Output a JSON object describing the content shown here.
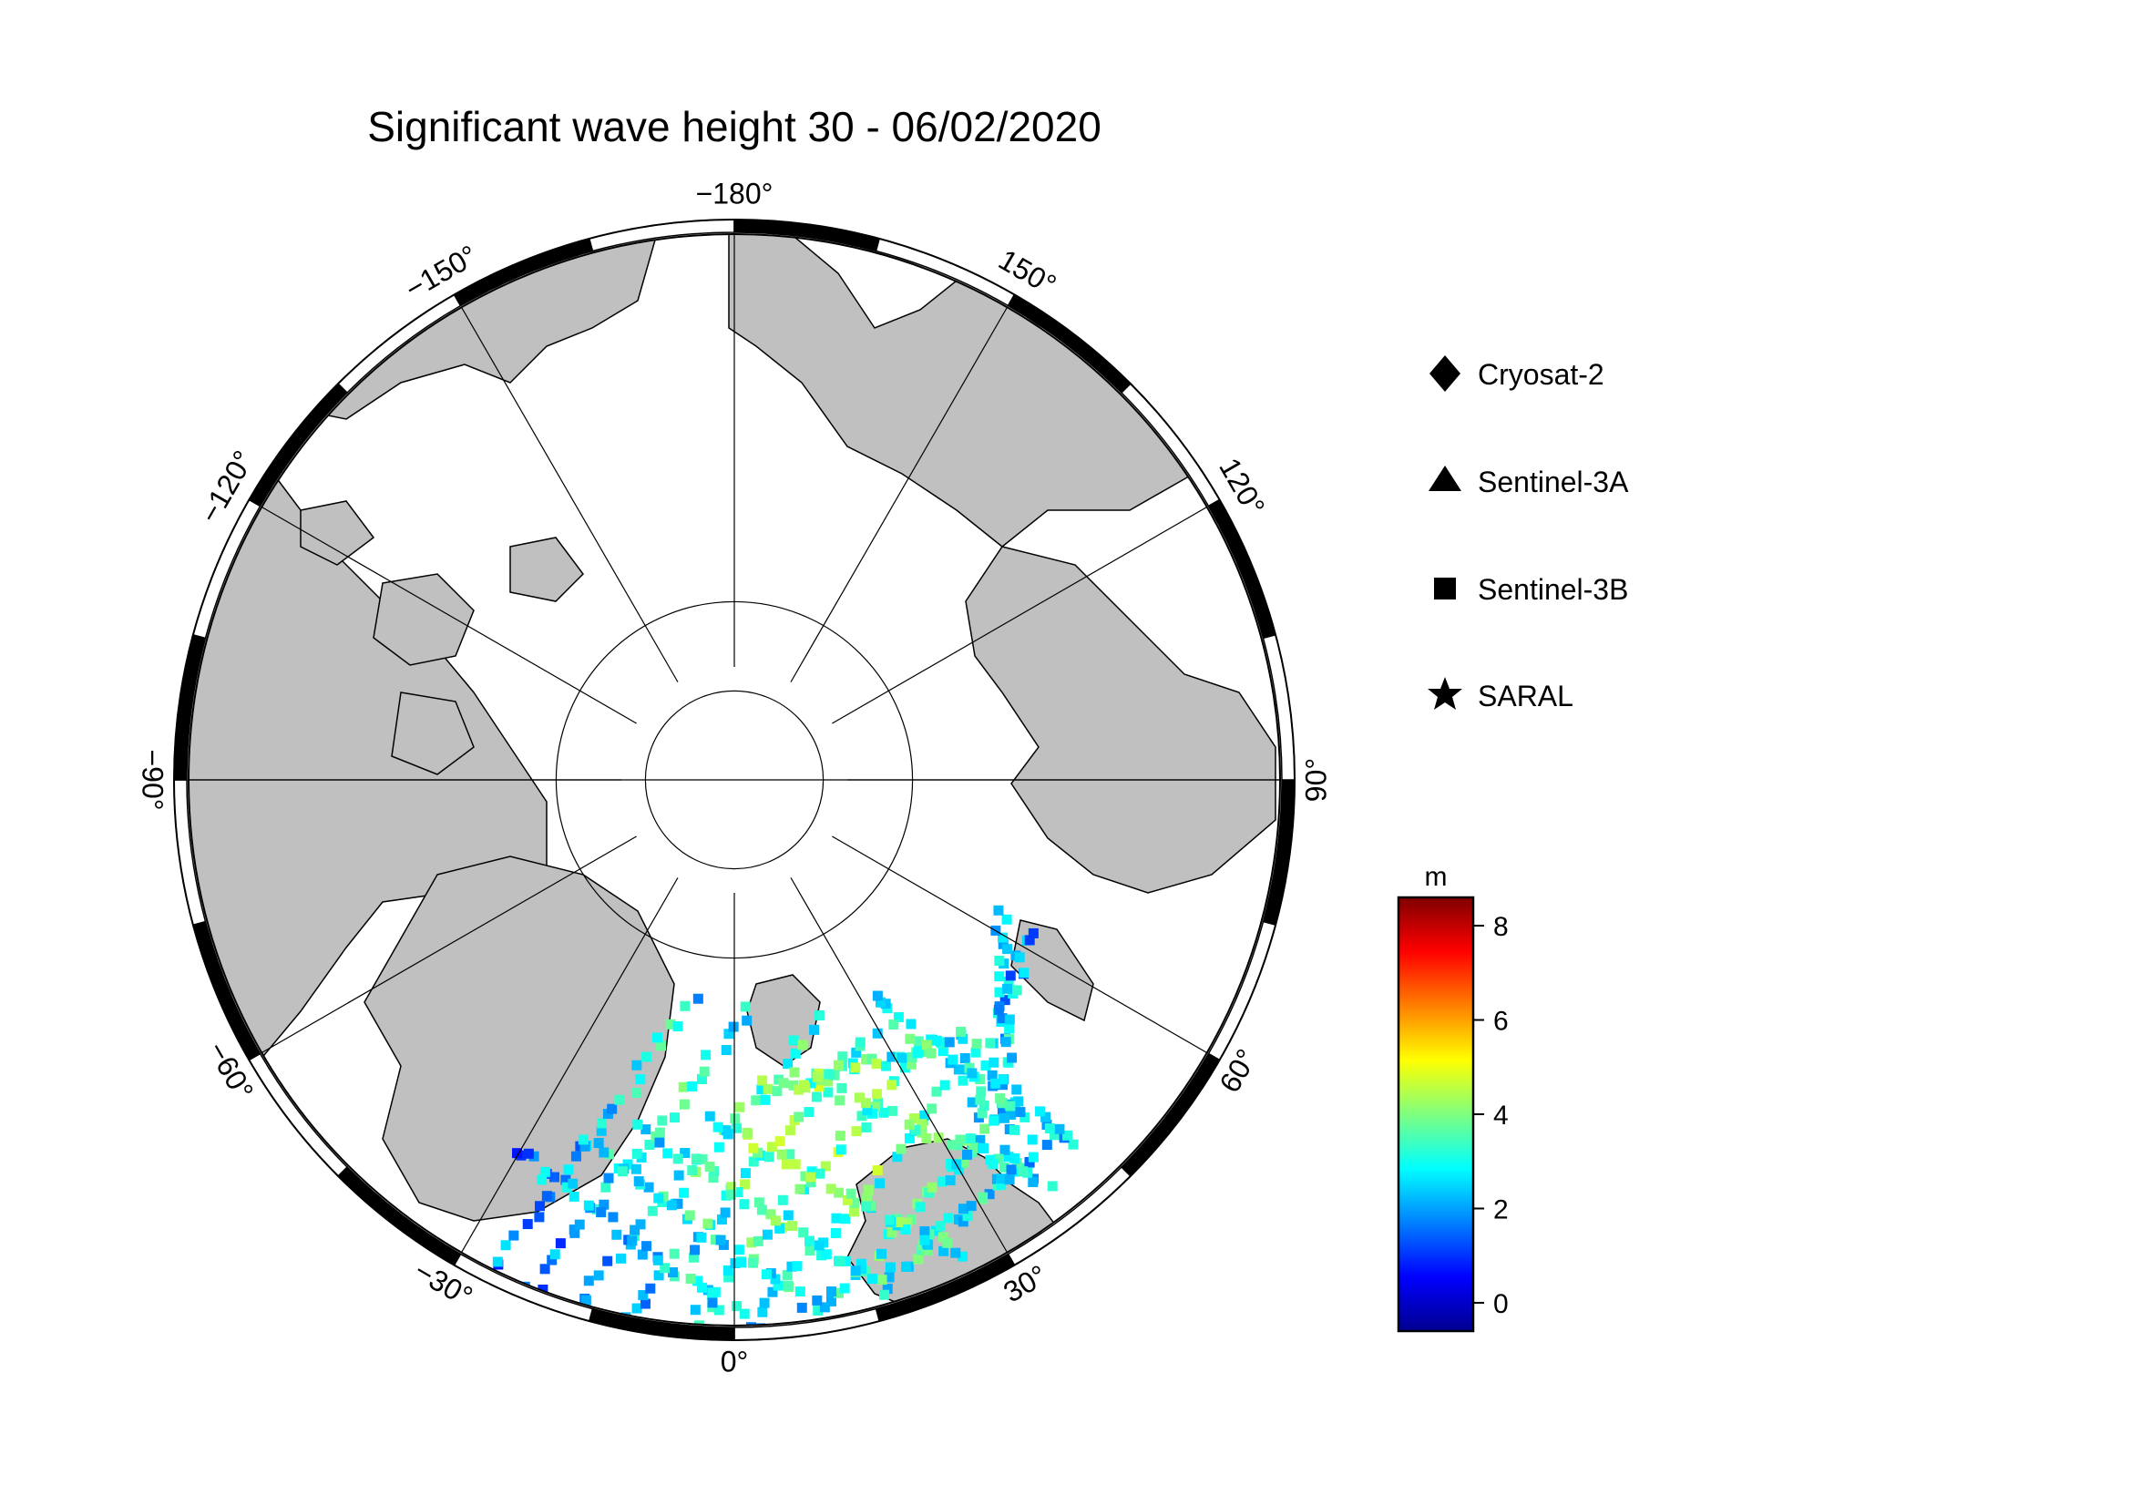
{
  "title": "Significant wave height 30 - 06/02/2020",
  "map": {
    "projection": "north-polar-stereographic",
    "colors": {
      "land": "#c0c0c0",
      "ocean": "#ffffff",
      "frame_dark": "#000000",
      "frame_light": "#ffffff"
    },
    "longitude_labels": [
      {
        "text": "0°",
        "lon": 0
      },
      {
        "text": "30°",
        "lon": 30
      },
      {
        "text": "60°",
        "lon": 60
      },
      {
        "text": "90°",
        "lon": 90
      },
      {
        "text": "120°",
        "lon": 120
      },
      {
        "text": "150°",
        "lon": 150
      },
      {
        "text": "−180°",
        "lon": 180
      },
      {
        "text": "−150°",
        "lon": -150
      },
      {
        "text": "−120°",
        "lon": -120
      },
      {
        "text": "−90°",
        "lon": -90
      },
      {
        "text": "−60°",
        "lon": -60
      },
      {
        "text": "−30°",
        "lon": -30
      }
    ],
    "latitude_circles": [
      80,
      85
    ]
  },
  "legend": {
    "items": [
      {
        "label": "Cryosat-2",
        "symbol": "diamond"
      },
      {
        "label": "Sentinel-3A",
        "symbol": "triangle"
      },
      {
        "label": "Sentinel-3B",
        "symbol": "square"
      },
      {
        "label": "SARAL",
        "symbol": "star"
      }
    ]
  },
  "colorbar": {
    "unit": "m",
    "ticks": [
      "0",
      "2",
      "4",
      "6",
      "8"
    ],
    "range": [
      -0.6,
      8.6
    ],
    "colormap": "jet"
  },
  "chart_data": {
    "type": "scatter",
    "title": "Significant wave height 30 - 06/02/2020",
    "units": "m",
    "color_range": [
      -0.6,
      8.6
    ],
    "series": [
      {
        "name": "Sentinel-3A",
        "marker": "triangle"
      },
      {
        "name": "Sentinel-3B",
        "marker": "square"
      },
      {
        "name": "SARAL",
        "marker": "star"
      },
      {
        "name": "Cryosat-2",
        "marker": "diamond"
      }
    ]
  }
}
